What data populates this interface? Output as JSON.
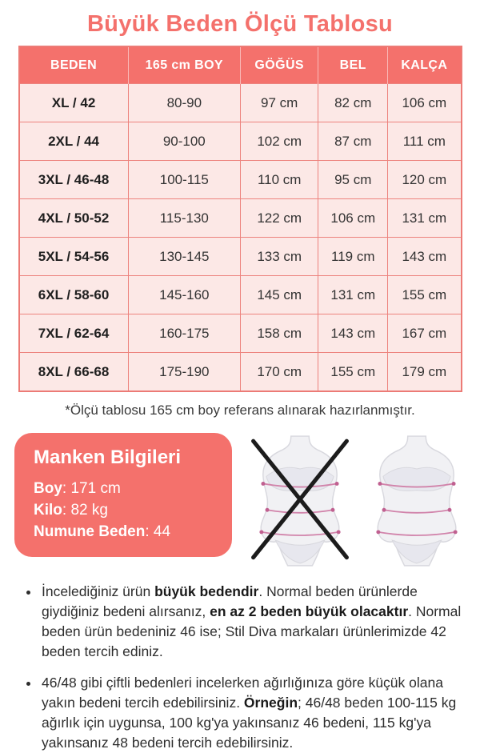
{
  "title": "Büyük Beden Ölçü Tablosu",
  "table": {
    "headers": [
      "BEDEN",
      "165 cm BOY",
      "GÖĞÜS",
      "BEL",
      "KALÇA"
    ],
    "rows": [
      [
        "XL / 42",
        "80-90",
        "97 cm",
        "82 cm",
        "106 cm"
      ],
      [
        "2XL / 44",
        "90-100",
        "102 cm",
        "87 cm",
        "111 cm"
      ],
      [
        "3XL / 46-48",
        "100-115",
        "110 cm",
        "95 cm",
        "120 cm"
      ],
      [
        "4XL / 50-52",
        "115-130",
        "122 cm",
        "106 cm",
        "131 cm"
      ],
      [
        "5XL / 54-56",
        "130-145",
        "133 cm",
        "119 cm",
        "143 cm"
      ],
      [
        "6XL / 58-60",
        "145-160",
        "145 cm",
        "131 cm",
        "155 cm"
      ],
      [
        "7XL / 62-64",
        "160-175",
        "158 cm",
        "143 cm",
        "167 cm"
      ],
      [
        "8XL / 66-68",
        "175-190",
        "170 cm",
        "155 cm",
        "179 cm"
      ]
    ],
    "footnote": "*Ölçü tablosu 165 cm boy referans alınarak hazırlanmıştır."
  },
  "model_info": {
    "heading": "Manken Bilgileri",
    "lines": [
      [
        {
          "text": "Boy",
          "bold": true
        },
        {
          "text": ": 171 cm",
          "bold": false
        }
      ],
      [
        {
          "text": "Kilo",
          "bold": true
        },
        {
          "text": ": 82 kg",
          "bold": false
        }
      ],
      [
        {
          "text": "Numune Beden",
          "bold": true
        },
        {
          "text": ": 44",
          "bold": false
        }
      ]
    ]
  },
  "figures": {
    "left_icon": "crossed-out-slim-figure-icon",
    "right_icon": "plus-size-figure-icon"
  },
  "bullets": [
    [
      {
        "text": "İncelediğiniz ürün ",
        "bold": false
      },
      {
        "text": "büyük bedendir",
        "bold": true
      },
      {
        "text": ". Normal beden ürünlerde giydiğiniz bedeni alırsanız, ",
        "bold": false
      },
      {
        "text": "en az 2 beden büyük olacaktır",
        "bold": true
      },
      {
        "text": ". Normal beden ürün bedeniniz 46 ise; Stil Diva markaları ürünlerimizde 42 beden tercih ediniz.",
        "bold": false
      }
    ],
    [
      {
        "text": "46/48 gibi çiftli bedenleri incelerken ağırlığınıza göre küçük olana yakın bedeni tercih edebilirsiniz. ",
        "bold": false
      },
      {
        "text": "Örneğin",
        "bold": true
      },
      {
        "text": "; 46/48 beden 100-115 kg ağırlık için uygunsa, 100 kg'ya yakınsanız 46 bedeni, 115 kg'ya yakınsanız 48 bedeni tercih edebilirsiniz.",
        "bold": false
      }
    ]
  ],
  "colors": {
    "accent": "#f4716c",
    "cell_bg": "#fce8e6",
    "cell_border": "#ed837e",
    "text_body": "#2d2d2d",
    "measure_line": "#d183aa",
    "x_mark": "#1c1c1c"
  }
}
